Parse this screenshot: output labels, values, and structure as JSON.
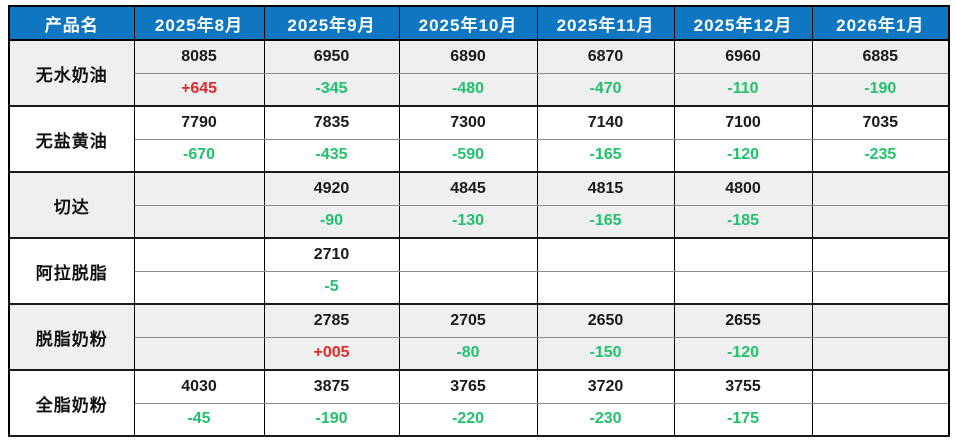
{
  "table": {
    "header": {
      "product_label": "产品名",
      "months": [
        "2025年8月",
        "2025年9月",
        "2025年10月",
        "2025年11月",
        "2025年12月",
        "2026年1月"
      ]
    },
    "products": [
      {
        "name": "无水奶油",
        "shaded": true,
        "values": [
          "8085",
          "6950",
          "6890",
          "6870",
          "6960",
          "6885"
        ],
        "changes": [
          "+645",
          "-345",
          "-480",
          "-470",
          "-110",
          "-190"
        ]
      },
      {
        "name": "无盐黄油",
        "shaded": false,
        "values": [
          "7790",
          "7835",
          "7300",
          "7140",
          "7100",
          "7035"
        ],
        "changes": [
          "-670",
          "-435",
          "-590",
          "-165",
          "-120",
          "-235"
        ]
      },
      {
        "name": "切达",
        "shaded": true,
        "values": [
          "",
          "4920",
          "4845",
          "4815",
          "4800",
          ""
        ],
        "changes": [
          "",
          "-90",
          "-130",
          "-165",
          "-185",
          ""
        ]
      },
      {
        "name": "阿拉脱脂",
        "shaded": false,
        "values": [
          "",
          "2710",
          "",
          "",
          "",
          ""
        ],
        "changes": [
          "",
          "-5",
          "",
          "",
          "",
          ""
        ]
      },
      {
        "name": "脱脂奶粉",
        "shaded": true,
        "values": [
          "",
          "2785",
          "2705",
          "2650",
          "2655",
          ""
        ],
        "changes": [
          "",
          "+005",
          "-80",
          "-150",
          "-120",
          ""
        ]
      },
      {
        "name": "全脂奶粉",
        "shaded": false,
        "values": [
          "4030",
          "3875",
          "3765",
          "3720",
          "3755",
          ""
        ],
        "changes": [
          "-45",
          "-190",
          "-220",
          "-230",
          "-175",
          ""
        ]
      }
    ]
  },
  "colors": {
    "header_bg": "#0f77c2",
    "header_text": "#ffffff",
    "positive_change": "#dc2b2b",
    "negative_change": "#21c16e",
    "shaded_row_bg": "#efefef"
  },
  "chart_data": {
    "type": "table",
    "title": "",
    "columns": [
      "产品名",
      "2025年8月",
      "2025年9月",
      "2025年10月",
      "2025年11月",
      "2025年12月",
      "2026年1月"
    ],
    "rows": [
      {
        "product": "无水奶油",
        "prices": [
          8085,
          6950,
          6890,
          6870,
          6960,
          6885
        ],
        "changes": [
          "+645",
          "-345",
          "-480",
          "-470",
          "-110",
          "-190"
        ]
      },
      {
        "product": "无盐黄油",
        "prices": [
          7790,
          7835,
          7300,
          7140,
          7100,
          7035
        ],
        "changes": [
          "-670",
          "-435",
          "-590",
          "-165",
          "-120",
          "-235"
        ]
      },
      {
        "product": "切达",
        "prices": [
          null,
          4920,
          4845,
          4815,
          4800,
          null
        ],
        "changes": [
          null,
          "-90",
          "-130",
          "-165",
          "-185",
          null
        ]
      },
      {
        "product": "阿拉脱脂",
        "prices": [
          null,
          2710,
          null,
          null,
          null,
          null
        ],
        "changes": [
          null,
          "-5",
          null,
          null,
          null,
          null
        ]
      },
      {
        "product": "脱脂奶粉",
        "prices": [
          null,
          2785,
          2705,
          2650,
          2655,
          null
        ],
        "changes": [
          null,
          "+005",
          "-80",
          "-150",
          "-120",
          null
        ]
      },
      {
        "product": "全脂奶粉",
        "prices": [
          4030,
          3875,
          3765,
          3720,
          3755,
          null
        ],
        "changes": [
          "-45",
          "-190",
          "-220",
          "-230",
          "-175",
          null
        ]
      }
    ],
    "legend": "red = increase, green = decrease",
    "notes": "each product has two rows: price and month-over-month change"
  }
}
